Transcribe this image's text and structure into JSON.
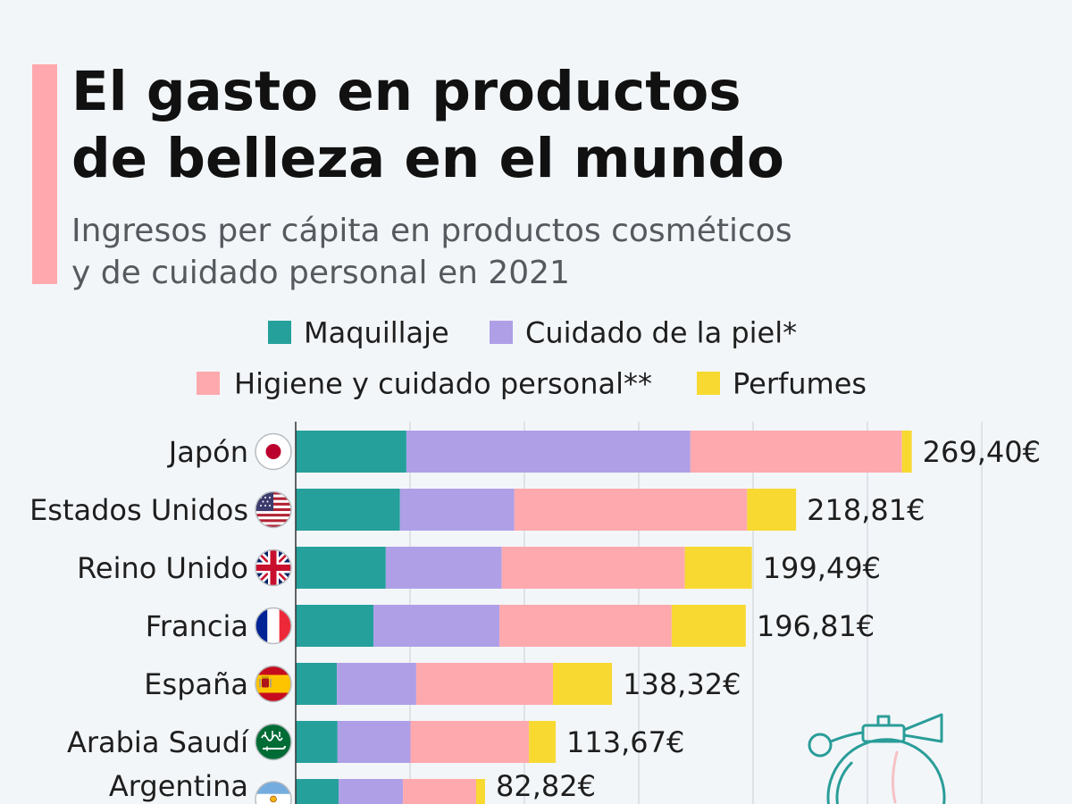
{
  "chart_data": {
    "type": "bar",
    "horizontal": true,
    "stacked": true,
    "title_lines": [
      "El gasto en productos",
      "de belleza en el mundo"
    ],
    "subtitle_lines": [
      "Ingresos per cápita en productos cosméticos",
      "y de cuidado personal en 2021"
    ],
    "categories": [
      "Japón",
      "Estados Unidos",
      "Reino Unido",
      "Francia",
      "España",
      "Arabia Saudí",
      "Argentina"
    ],
    "category_icons": [
      "japan-flag-icon",
      "usa-flag-icon",
      "uk-flag-icon",
      "france-flag-icon",
      "spain-flag-icon",
      "saudi-arabia-flag-icon",
      "argentina-flag-icon"
    ],
    "series": [
      {
        "name": "Maquillaje",
        "color": "#26a09b",
        "values": [
          48.4,
          45.6,
          39.4,
          34.0,
          18.0,
          18.3,
          18.8
        ]
      },
      {
        "name": "Cuidado de la piel*",
        "color": "#af9fe7",
        "values": [
          124.2,
          50.0,
          50.7,
          55.1,
          34.7,
          31.9,
          28.1
        ]
      },
      {
        "name": "Higiene y cuidado personal**",
        "color": "#fea9ae",
        "values": [
          92.5,
          101.8,
          80.1,
          75.3,
          59.8,
          51.8,
          32.0
        ]
      },
      {
        "name": "Perfumes",
        "color": "#f7d932",
        "values": [
          4.3,
          21.4,
          29.3,
          32.4,
          25.8,
          11.7,
          3.9
        ]
      }
    ],
    "totals": [
      269.4,
      218.81,
      199.49,
      196.81,
      138.32,
      113.67,
      82.82
    ],
    "value_labels": [
      "269,40€",
      "218,81€",
      "199,49€",
      "196,81€",
      "138,32€",
      "113,67€",
      "82,82€"
    ],
    "xlim": [
      0,
      300
    ],
    "grid": true,
    "grid_step": 50,
    "xlabel": "",
    "ylabel": "",
    "legend_position": "top"
  },
  "colors": {
    "background": "#f3f6f9",
    "accent": "#ffa9ae",
    "axis": "#333333",
    "gridline": "#c9cfd5",
    "illustration": "#2a9d99"
  },
  "decoration": {
    "illustration_icon": "perfume-bottle-icon"
  }
}
